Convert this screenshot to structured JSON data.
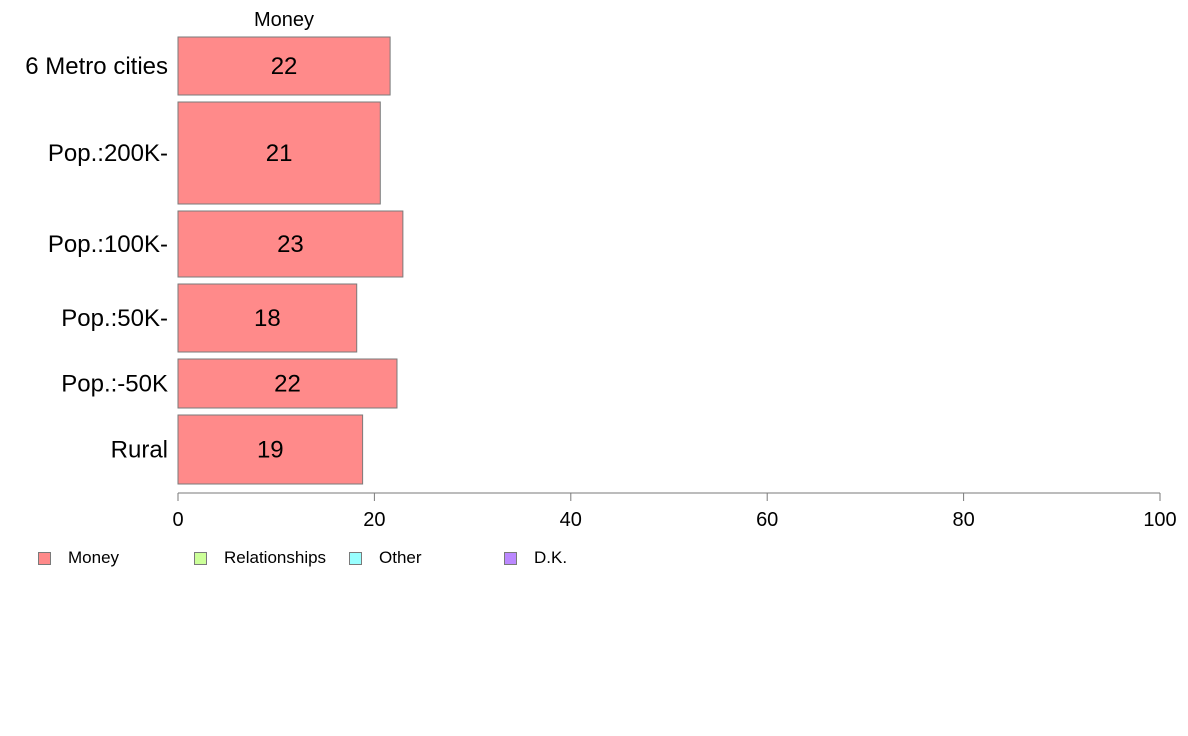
{
  "chart_data": {
    "type": "bar",
    "orientation": "horizontal",
    "panel_title": "Money",
    "categories": [
      "6 Metro cities",
      "Pop.:200K-",
      "Pop.:100K-",
      "Pop.:50K-",
      "Pop.:-50K",
      "Rural"
    ],
    "series": [
      {
        "name": "Money",
        "values": [
          21.6,
          20.6,
          22.9,
          18.2,
          22.3,
          18.8
        ],
        "labels": [
          "22",
          "21",
          "23",
          "18",
          "22",
          "19"
        ]
      }
    ],
    "relative_row_heights": [
      58,
      102,
      66,
      68,
      49,
      69
    ],
    "xlim": [
      0,
      100
    ],
    "xticks": [
      0,
      20,
      40,
      60,
      80,
      100
    ],
    "xtick_labels": [
      "0",
      "20",
      "40",
      "60",
      "80",
      "100"
    ],
    "xlabel": "",
    "ylabel": "",
    "grid": false,
    "legend_position": "bottom-left",
    "legend": [
      {
        "label": "Money",
        "color": "#ff8a8a"
      },
      {
        "label": "Relationships",
        "color": "#ccff99"
      },
      {
        "label": "Other",
        "color": "#99ffff"
      },
      {
        "label": "D.K.",
        "color": "#bb88ff"
      }
    ],
    "bar_color": "#ff8a8a",
    "bar_edge_color": "#7a7a7a",
    "axis_color": "#7a7a7a"
  }
}
